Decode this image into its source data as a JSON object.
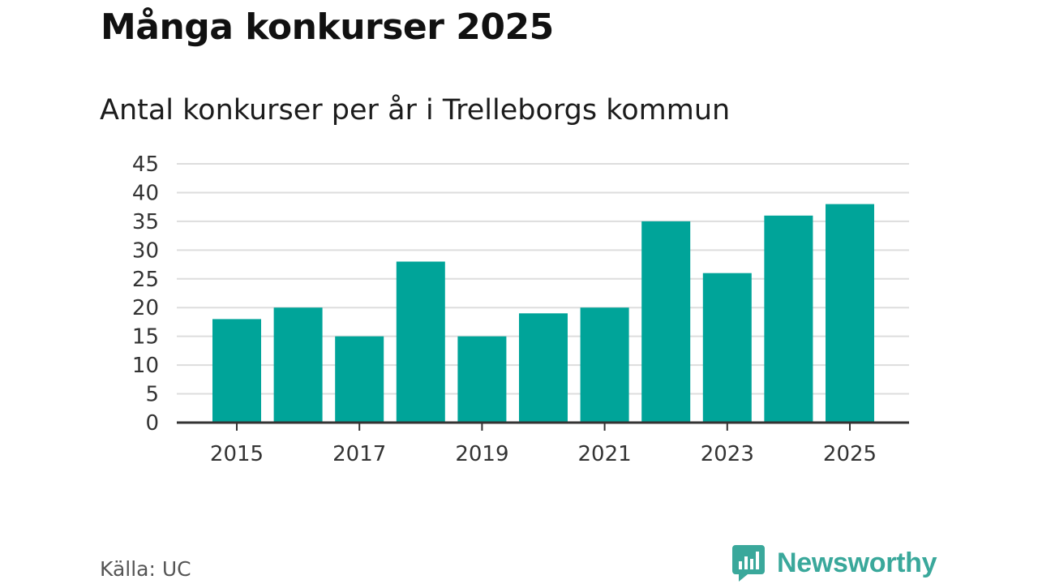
{
  "header": {
    "title": "Många konkurser 2025",
    "subtitle": "Antal konkurser per år i Trelleborgs kommun"
  },
  "footer": {
    "source": "Källa: UC",
    "brand": "Newsworthy",
    "logo_icon": "bar-chart-speech-bubble-icon"
  },
  "colors": {
    "bar": "#00a499",
    "grid": "#dddddd",
    "axis": "#333333",
    "brand": "#3aa89b"
  },
  "chart_data": {
    "type": "bar",
    "title": "Antal konkurser per år i Trelleborgs kommun",
    "xlabel": "",
    "ylabel": "",
    "categories": [
      "2015",
      "2016",
      "2017",
      "2018",
      "2019",
      "2020",
      "2021",
      "2022",
      "2023",
      "2024",
      "2025"
    ],
    "values": [
      18,
      20,
      15,
      28,
      15,
      19,
      20,
      35,
      26,
      36,
      38
    ],
    "x_tick_labels": [
      "2015",
      "2017",
      "2019",
      "2021",
      "2023",
      "2025"
    ],
    "y_ticks": [
      0,
      5,
      10,
      15,
      20,
      25,
      30,
      35,
      40,
      45
    ],
    "ylim": [
      0,
      45
    ],
    "grid": true,
    "legend": "none"
  }
}
